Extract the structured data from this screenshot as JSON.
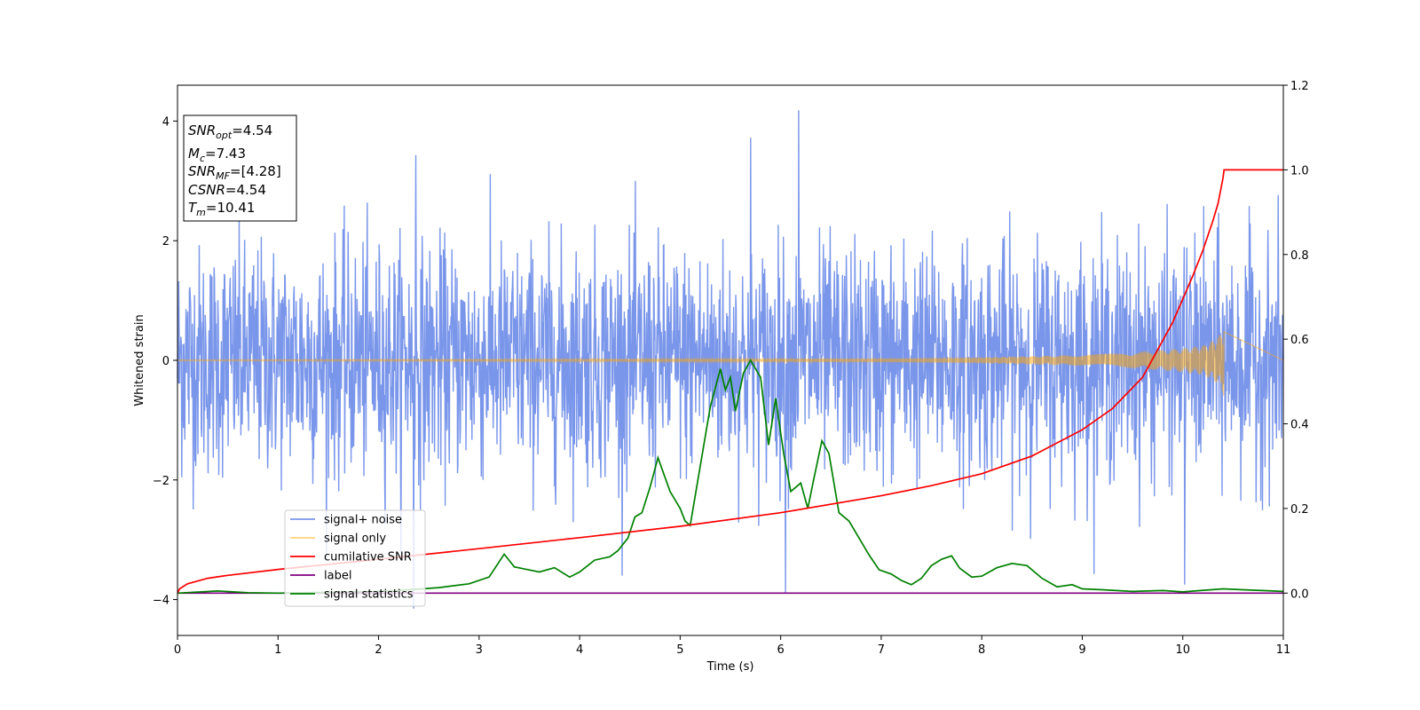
{
  "chart_data": {
    "type": "line",
    "xlabel": "Time (s)",
    "ylabel": "Whitened strain",
    "xlim": [
      0,
      11
    ],
    "ylim": [
      -4.6,
      4.6
    ],
    "y2lim": [
      -0.1,
      1.2
    ],
    "x_ticks": [
      0,
      1,
      2,
      3,
      4,
      5,
      6,
      7,
      8,
      9,
      10,
      11
    ],
    "y_ticks": [
      -4,
      -2,
      0,
      2,
      4
    ],
    "y2_ticks": [
      0.0,
      0.2,
      0.4,
      0.6,
      0.8,
      1.0,
      1.2
    ],
    "x_tick_labels": [
      "0",
      "1",
      "2",
      "3",
      "4",
      "5",
      "6",
      "7",
      "8",
      "9",
      "10",
      "11"
    ],
    "y_tick_labels": [
      "−4",
      "−2",
      "0",
      "2",
      "4"
    ],
    "y2_tick_labels": [
      "0.0",
      "0.2",
      "0.4",
      "0.6",
      "0.8",
      "1.0",
      "1.2"
    ],
    "grid": false,
    "legend_position": "lower-left",
    "annotation": {
      "lines": [
        {
          "base": "SNR",
          "sub": "opt",
          "rest": "=4.54"
        },
        {
          "base": "M",
          "sub": "c",
          "rest": "=7.43"
        },
        {
          "base": "SNR",
          "sub": "MF",
          "rest": "=[4.28]"
        },
        {
          "base": "CSNR",
          "sub": "",
          "rest": "=4.54"
        },
        {
          "base": "T",
          "sub": "m",
          "rest": "=10.41"
        }
      ]
    },
    "series": [
      {
        "name": "signal+ noise",
        "color": "#4169e1",
        "axis": "left",
        "kind": "noise",
        "std": 0.95,
        "peaks": [
          [
            6.18,
            4.18
          ],
          [
            2.35,
            -4.15
          ],
          [
            6.05,
            -3.9
          ],
          [
            5.7,
            3.72
          ],
          [
            2.37,
            3.43
          ],
          [
            10.02,
            -3.75
          ]
        ]
      },
      {
        "name": "signal only",
        "color": "#ffa500",
        "axis": "left",
        "kind": "chirp",
        "envelope": [
          [
            0,
            0.01
          ],
          [
            7,
            0.03
          ],
          [
            8,
            0.05
          ],
          [
            9,
            0.09
          ],
          [
            9.5,
            0.13
          ],
          [
            10,
            0.2
          ],
          [
            10.2,
            0.25
          ],
          [
            10.3,
            0.33
          ],
          [
            10.38,
            0.45
          ],
          [
            10.41,
            0.63
          ],
          [
            10.42,
            0
          ]
        ],
        "end": 10.41
      },
      {
        "name": "cumilative SNR",
        "color": "#ff0000",
        "axis": "right",
        "x": [
          0,
          0.02,
          0.1,
          0.3,
          0.5,
          1,
          2,
          3,
          4,
          5,
          6,
          7,
          7.5,
          8,
          8.5,
          9,
          9.3,
          9.6,
          9.9,
          10.1,
          10.2,
          10.3,
          10.35,
          10.4,
          10.41,
          10.45,
          11
        ],
        "y": [
          0.0,
          0.01,
          0.022,
          0.035,
          0.042,
          0.056,
          0.08,
          0.105,
          0.131,
          0.158,
          0.19,
          0.23,
          0.254,
          0.282,
          0.324,
          0.386,
          0.436,
          0.51,
          0.64,
          0.75,
          0.81,
          0.88,
          0.92,
          0.98,
          1.0,
          1.0,
          1.0
        ]
      },
      {
        "name": "label",
        "color": "#800080",
        "axis": "right",
        "x": [
          0,
          11
        ],
        "y": [
          0,
          0
        ]
      },
      {
        "name": "signal statistics",
        "color": "#008000",
        "axis": "right",
        "x": [
          0,
          0.4,
          0.7,
          1.0,
          1.5,
          2.0,
          2.3,
          2.6,
          2.9,
          3.1,
          3.25,
          3.35,
          3.45,
          3.6,
          3.75,
          3.9,
          4.0,
          4.15,
          4.3,
          4.38,
          4.48,
          4.55,
          4.62,
          4.7,
          4.78,
          4.9,
          5.0,
          5.05,
          5.1,
          5.2,
          5.3,
          5.4,
          5.45,
          5.5,
          5.55,
          5.63,
          5.7,
          5.8,
          5.88,
          5.95,
          6.03,
          6.1,
          6.2,
          6.27,
          6.33,
          6.41,
          6.48,
          6.58,
          6.68,
          6.78,
          6.88,
          6.98,
          7.1,
          7.2,
          7.3,
          7.4,
          7.5,
          7.6,
          7.7,
          7.78,
          7.9,
          8.0,
          8.15,
          8.3,
          8.45,
          8.6,
          8.75,
          8.9,
          9.0,
          9.2,
          9.5,
          9.8,
          10.0,
          10.4,
          10.6,
          11.0
        ],
        "y": [
          0.0,
          0.005,
          0.001,
          0.0,
          0.002,
          0.004,
          0.008,
          0.013,
          0.022,
          0.038,
          0.092,
          0.062,
          0.057,
          0.05,
          0.06,
          0.038,
          0.05,
          0.078,
          0.086,
          0.1,
          0.13,
          0.18,
          0.19,
          0.25,
          0.32,
          0.24,
          0.2,
          0.17,
          0.16,
          0.3,
          0.44,
          0.53,
          0.48,
          0.51,
          0.43,
          0.52,
          0.55,
          0.51,
          0.35,
          0.46,
          0.33,
          0.24,
          0.26,
          0.2,
          0.27,
          0.36,
          0.33,
          0.19,
          0.17,
          0.13,
          0.09,
          0.055,
          0.045,
          0.03,
          0.02,
          0.035,
          0.065,
          0.08,
          0.088,
          0.059,
          0.038,
          0.04,
          0.06,
          0.07,
          0.065,
          0.035,
          0.015,
          0.02,
          0.01,
          0.008,
          0.004,
          0.006,
          0.003,
          0.01,
          0.008,
          0.004
        ]
      }
    ]
  }
}
